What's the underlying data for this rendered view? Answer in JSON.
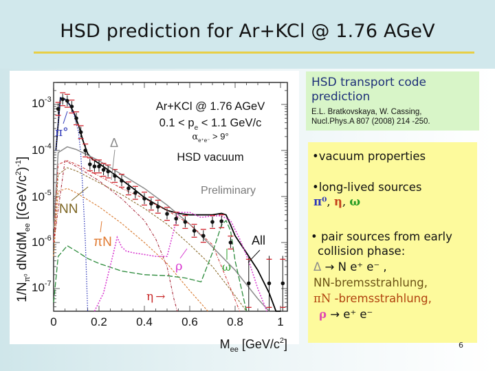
{
  "slide": {
    "title": "HSD prediction for Ar+KCl @ 1.76 AGeV",
    "page_number": "6"
  },
  "info_box": {
    "title": "HSD transport code prediction",
    "reference_line1": "E.L. Bratkovskaya, W. Cassing,",
    "reference_line2": "Nucl.Phys.A 807 (2008) 214 -250."
  },
  "notes": {
    "bullet1": "•vacuum properties",
    "bullet2": "•long-lived sources",
    "sources_pi0": "π⁰",
    "sources_sep1": ", ",
    "sources_eta": "η",
    "sources_sep2": ", ",
    "sources_omega": "ω",
    "bullet3_line1": "• pair sources from early",
    "bullet3_line2": "collision phase:",
    "delta_symbol": "Δ",
    "delta_decay": " → N e⁺ e⁻ ,",
    "nn_brems": "NN-bremsstrahlung,",
    "pin_symbol": "πN",
    "pin_brems": " -bremsstrahlung,",
    "rho_symbol": "ρ",
    "rho_decay": " → e⁺ e⁻"
  },
  "colors": {
    "title_rule": "#e8cf45",
    "info_bg": "#d8f5c8",
    "notes_bg": "#fdfa9c",
    "pi0": "#2c36b8",
    "eta": "#c4401a",
    "omega": "#239a22",
    "delta": "#8a8a8a",
    "nn": "#6b5214",
    "pin": "#d9792e",
    "rho": "#d83ad0",
    "all": "#000000",
    "data_syst": "#d0202a"
  },
  "chart_data": {
    "type": "line",
    "title": "Ar+KCl @ 1.76 AGeV",
    "annotations": [
      "Ar+KCl @ 1.76 AGeV",
      "0.1 < p_e < 1.1 GeV/c",
      "α_e+e- > 9°",
      "HSD vacuum",
      "Preliminary"
    ],
    "xlabel": "M_ee [GeV/c²]",
    "ylabel": "1/N_π0 dN/dM_ee [(GeV/c²)⁻¹]",
    "xlim": [
      0,
      1.05
    ],
    "ylim": [
      2e-08,
      0.003
    ],
    "yscale": "log",
    "x_ticks": [
      "0",
      "0.2",
      "0.4",
      "0.6",
      "0.8",
      "1"
    ],
    "y_ticks": [
      "10⁻³",
      "10⁻⁴",
      "10⁻⁵",
      "10⁻⁶",
      "10⁻⁷"
    ],
    "legend_position": "inline labels",
    "series": [
      {
        "name": "All",
        "style": "solid black",
        "x": [
          0.01,
          0.03,
          0.05,
          0.07,
          0.09,
          0.11,
          0.13,
          0.15,
          0.17,
          0.2,
          0.25,
          0.3,
          0.35,
          0.4,
          0.45,
          0.5,
          0.55,
          0.6,
          0.65,
          0.7,
          0.74,
          0.76,
          0.78,
          0.8,
          0.85,
          0.9,
          0.95,
          0.98,
          1.0
        ],
        "y": [
          0.0001,
          0.0014,
          0.0013,
          0.001,
          0.00065,
          0.00035,
          0.00016,
          8.5e-05,
          6.5e-05,
          5.2e-05,
          3.5e-05,
          2.3e-05,
          1.5e-05,
          9.5e-06,
          6.8e-06,
          5e-06,
          4.3e-06,
          4e-06,
          4e-06,
          4e-06,
          4.3e-06,
          4e-06,
          2.4e-06,
          1.4e-06,
          6e-07,
          2.5e-07,
          8e-08,
          3e-08,
          2e-08
        ]
      },
      {
        "name": "π⁰",
        "style": "blue dotted",
        "x": [
          0.01,
          0.03,
          0.05,
          0.07,
          0.09,
          0.11,
          0.12,
          0.13,
          0.14,
          0.15
        ],
        "y": [
          0.0001,
          0.0014,
          0.0013,
          0.00098,
          0.0006,
          0.00025,
          8e-05,
          1e-05,
          1e-06,
          2e-08
        ]
      },
      {
        "name": "Δ",
        "style": "solid gray",
        "x": [
          0.0,
          0.02,
          0.06,
          0.1,
          0.2,
          0.3,
          0.4,
          0.5,
          0.6,
          0.7,
          0.8,
          0.9,
          0.95
        ],
        "y": [
          2e-06,
          9e-05,
          0.00012,
          0.000105,
          6e-05,
          3e-05,
          1.5e-05,
          6.5e-06,
          2.5e-06,
          8e-07,
          2.5e-07,
          6e-08,
          2e-08
        ]
      },
      {
        "name": "NN",
        "style": "brown dashed",
        "x": [
          0.0,
          0.02,
          0.06,
          0.1,
          0.2,
          0.3,
          0.4,
          0.5,
          0.6,
          0.7,
          0.8,
          0.85
        ],
        "y": [
          1e-06,
          3e-05,
          4.2e-05,
          3.6e-05,
          2e-05,
          1.1e-05,
          5.5e-06,
          2.5e-06,
          9e-07,
          3e-07,
          7e-08,
          2e-08
        ]
      },
      {
        "name": "πN",
        "style": "orange dashed",
        "x": [
          0.0,
          0.02,
          0.06,
          0.1,
          0.2,
          0.3,
          0.4,
          0.5,
          0.6,
          0.68
        ],
        "y": [
          5e-07,
          1.3e-05,
          1.5e-05,
          1.2e-05,
          6e-06,
          2.6e-06,
          1e-06,
          3.5e-07,
          9e-08,
          2e-08
        ]
      },
      {
        "name": "NN/Δ (red dash-dot)",
        "style": "red dash-dotted",
        "x": [
          0.0,
          0.02,
          0.06,
          0.1,
          0.2,
          0.3,
          0.4,
          0.5,
          0.6,
          0.7,
          0.78,
          0.82
        ],
        "y": [
          1e-06,
          5e-05,
          6e-05,
          5e-05,
          2.8e-05,
          1.5e-05,
          9e-06,
          5e-06,
          2.5e-06,
          9e-07,
          1e-07,
          2e-08
        ]
      },
      {
        "name": "η",
        "style": "dark red dash-dotted",
        "x": [
          0.0,
          0.05,
          0.1,
          0.2,
          0.3,
          0.4,
          0.45,
          0.5,
          0.53,
          0.545
        ],
        "y": [
          1e-06,
          6e-05,
          4.5e-05,
          2.2e-05,
          9e-06,
          3e-06,
          1.2e-06,
          3e-07,
          6e-08,
          2e-08
        ]
      },
      {
        "name": "ω",
        "style": "green long-dashed",
        "x": [
          0.0,
          0.02,
          0.06,
          0.1,
          0.15,
          0.2,
          0.3,
          0.4,
          0.5,
          0.58,
          0.65,
          0.7,
          0.74,
          0.76,
          0.78,
          0.8,
          0.85,
          0.86
        ],
        "y": [
          5e-08,
          5e-07,
          8.5e-07,
          6.5e-07,
          4.5e-07,
          3.5e-07,
          2.4e-07,
          2e-07,
          1.9e-07,
          1.7e-07,
          1.4e-07,
          6e-07,
          2.4e-06,
          3e-06,
          1.8e-06,
          4e-07,
          3e-08,
          2e-08
        ]
      },
      {
        "name": "ρ",
        "style": "magenta dotted",
        "x": [
          0.18,
          0.22,
          0.26,
          0.28,
          0.3,
          0.32,
          0.35,
          0.4,
          0.45,
          0.5,
          0.55,
          0.6,
          0.65,
          0.7,
          0.74,
          0.78,
          0.82,
          0.86,
          0.9,
          0.94
        ],
        "y": [
          2e-08,
          8e-08,
          5e-07,
          1.3e-06,
          8e-07,
          6.5e-07,
          6e-07,
          5.5e-07,
          5e-07,
          5e-07,
          4.5e-06,
          4.5e-06,
          3.5e-06,
          3.8e-06,
          3.8e-06,
          3e-06,
          1.2e-06,
          4e-07,
          1e-07,
          2e-08
        ]
      },
      {
        "name": "HADES data",
        "style": "black points w/ error bars",
        "x": [
          0.02,
          0.04,
          0.06,
          0.08,
          0.1,
          0.12,
          0.14,
          0.16,
          0.18,
          0.2,
          0.22,
          0.24,
          0.27,
          0.3,
          0.33,
          0.36,
          0.4,
          0.43,
          0.46,
          0.5,
          0.54,
          0.58,
          0.62,
          0.66,
          0.7,
          0.74,
          0.78,
          0.86,
          0.95,
          1.01
        ],
        "y": [
          0.0008,
          0.0013,
          0.0012,
          0.0009,
          0.0005,
          0.00025,
          0.0001,
          5e-05,
          4.5e-05,
          4.5e-05,
          3.8e-05,
          3.5e-05,
          2.8e-05,
          2.2e-05,
          1.5e-05,
          1.2e-05,
          9e-06,
          7e-06,
          6e-06,
          4.2e-06,
          3.3e-06,
          2.8e-06,
          1.8e-06,
          1.4e-06,
          2.8e-06,
          2.9e-06,
          1e-06,
          1.3e-07,
          1.3e-07,
          1.3e-07
        ]
      }
    ]
  },
  "chart_labels": {
    "annot_line1": "Ar+KCl @ 1.76 AGeV",
    "annot_line2": "0.1 < p",
    "annot_line2_sub": "e",
    "annot_line2_rest": " < 1.1 GeV/c",
    "annot_line3": "α",
    "annot_line3_sub": "e⁺e⁻",
    "annot_line3_rest": " > 9°",
    "annot_line4": "HSD vacuum",
    "preliminary": "Preliminary",
    "label_pi0": "π°",
    "label_delta": "Δ",
    "label_nn": "NN",
    "label_pin": "πN",
    "label_rho": "ρ",
    "label_omega": "ω",
    "label_eta": "η",
    "label_eta_arrow": "→",
    "label_all": "All",
    "x_tick_0": "0",
    "x_tick_1": "0.2",
    "x_tick_2": "0.4",
    "x_tick_3": "0.6",
    "x_tick_4": "0.8",
    "x_tick_5": "1",
    "y_tick_base": "10",
    "y_exp_3": "-3",
    "y_exp_4": "-4",
    "y_exp_5": "-5",
    "y_exp_6": "-6",
    "y_exp_7": "-7",
    "xlabel_main": "M",
    "xlabel_sub": "ee",
    "xlabel_rest": " [GeV/c",
    "xlabel_sup": "2",
    "xlabel_end": "]",
    "ylabel_a": "1/N",
    "ylabel_sub": "π⁰",
    "ylabel_b": " dN/dM",
    "ylabel_sub2": "ee",
    "ylabel_c": " [(GeV/c",
    "ylabel_sup": "2",
    "ylabel_d": ")",
    "ylabel_sup2": "-1",
    "ylabel_e": "]"
  }
}
